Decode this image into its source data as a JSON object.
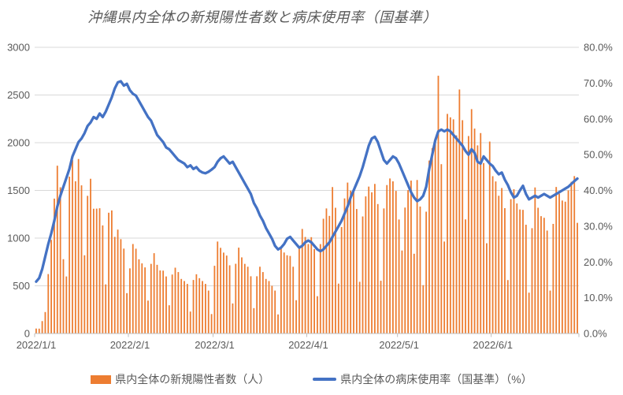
{
  "chart_data": {
    "type": "combo",
    "title": "沖縄県内全体の新規陽性者数と病床使用率（国基準）",
    "start_date": "2022/1/1",
    "x_tick_labels": [
      "2022/1/1",
      "2022/2/1",
      "2022/3/1",
      "2022/4/1",
      "2022/5/1",
      "2022/6/1"
    ],
    "x_tick_day_index": [
      0,
      31,
      59,
      90,
      120,
      151
    ],
    "days_total": 180,
    "left_axis": {
      "min": 0,
      "max": 3000,
      "step": 500,
      "tick_labels": [
        "0",
        "500",
        "1000",
        "1500",
        "2000",
        "2500",
        "3000"
      ]
    },
    "right_axis": {
      "min": 0,
      "max": 80,
      "step": 10,
      "tick_labels": [
        "0.0%",
        "10.0%",
        "20.0%",
        "30.0%",
        "40.0%",
        "50.0%",
        "60.0%",
        "70.0%",
        "80.0%"
      ]
    },
    "grid": "horizontal",
    "legend_position": "bottom",
    "colors": {
      "bar": "#ED7D31",
      "line": "#4472C4",
      "grid": "#D9D9D9",
      "axis": "#BFBFBF",
      "text": "#595959"
    },
    "series": [
      {
        "name": "県内全体の新規陽性者数（人）",
        "type": "bar",
        "axis": "left",
        "color": "#ED7D31",
        "values": [
          52,
          51,
          130,
          225,
          623,
          981,
          1414,
          1759,
          1533,
          779,
          598,
          1644,
          1817,
          1596,
          1829,
          1553,
          820,
          1443,
          1622,
          1308,
          1309,
          1313,
          1133,
          515,
          1266,
          1290,
          1013,
          1089,
          989,
          890,
          423,
          683,
          938,
          889,
          778,
          735,
          693,
          345,
          730,
          842,
          720,
          661,
          659,
          598,
          296,
          618,
          690,
          644,
          572,
          550,
          520,
          230,
          561,
          621,
          580,
          550,
          520,
          450,
          204,
          710,
          964,
          898,
          848,
          817,
          715,
          315,
          731,
          900,
          798,
          730,
          700,
          600,
          266,
          600,
          700,
          644,
          572,
          550,
          500,
          450,
          200,
          893,
          849,
          820,
          813,
          700,
          349,
          900,
          1096,
          1012,
          938,
          1010,
          885,
          391,
          937,
          1203,
          1311,
          1233,
          1535,
          1318,
          523,
          1116,
          1416,
          1582,
          1497,
          1507,
          1305,
          542,
          1227,
          1437,
          1540,
          1480,
          1568,
          1357,
          553,
          1311,
          1556,
          1625,
          1595,
          1495,
          1195,
          870,
          1320,
          1503,
          1603,
          836,
          1609,
          1331,
          507,
          1277,
          1813,
          1944,
          2046,
          2702,
          1775,
          964,
          2302,
          2266,
          2245,
          2077,
          2558,
          2236,
          1196,
          2070,
          2352,
          2148,
          1972,
          2101,
          1787,
          946,
          2012,
          1649,
          1594,
          1444,
          1525,
          1314,
          560,
          1408,
          1512,
          1363,
          1300,
          1296,
          1140,
          428,
          1104,
          1531,
          1318,
          1230,
          1213,
          1079,
          450,
          1149,
          1536,
          1465,
          1394,
          1382,
          1500,
          1590,
          1650,
          1160
        ]
      },
      {
        "name": "県内全体の病床使用率（国基準）（%）",
        "type": "line",
        "axis": "right",
        "color": "#4472C4",
        "values": [
          14.5,
          15.5,
          18.0,
          21.5,
          25.0,
          28.0,
          31.5,
          35.5,
          38.5,
          41.0,
          43.5,
          46.0,
          49.5,
          51.5,
          53.5,
          54.5,
          56.0,
          58.0,
          59.0,
          60.5,
          60.0,
          61.5,
          60.5,
          62.0,
          64.0,
          66.0,
          68.5,
          70.2,
          70.5,
          69.3,
          69.8,
          68.0,
          67.0,
          66.5,
          65.0,
          63.5,
          62.0,
          60.5,
          59.5,
          57.5,
          55.5,
          54.5,
          53.5,
          52.0,
          51.5,
          50.5,
          49.5,
          48.5,
          48.0,
          47.5,
          46.5,
          47.0,
          46.0,
          46.5,
          45.5,
          45.0,
          44.8,
          45.2,
          45.8,
          46.5,
          48.0,
          49.0,
          49.5,
          48.5,
          47.5,
          48.0,
          46.5,
          45.0,
          43.5,
          42.0,
          40.5,
          39.0,
          36.5,
          35.0,
          33.0,
          31.5,
          29.5,
          28.0,
          26.5,
          24.5,
          23.5,
          24.0,
          25.0,
          26.5,
          27.0,
          26.0,
          25.0,
          24.0,
          24.5,
          25.5,
          26.0,
          25.5,
          24.5,
          23.5,
          23.0,
          23.5,
          24.5,
          25.5,
          27.0,
          28.5,
          30.0,
          31.5,
          33.5,
          35.5,
          38.0,
          40.0,
          42.0,
          44.0,
          46.5,
          49.5,
          52.5,
          54.5,
          55.0,
          53.5,
          51.0,
          48.5,
          47.5,
          48.5,
          49.5,
          49.0,
          47.5,
          45.5,
          43.5,
          41.5,
          39.5,
          38.0,
          37.0,
          37.5,
          38.5,
          41.0,
          46.0,
          50.0,
          54.0,
          56.5,
          57.0,
          56.5,
          57.0,
          56.5,
          55.5,
          54.5,
          53.5,
          52.5,
          51.0,
          50.0,
          51.5,
          50.5,
          48.0,
          47.5,
          49.5,
          48.5,
          47.5,
          46.8,
          45.5,
          44.5,
          45.0,
          43.0,
          41.5,
          39.5,
          38.0,
          38.5,
          40.0,
          41.3,
          39.0,
          37.5,
          38.0,
          38.5,
          38.0,
          38.5,
          39.0,
          38.5,
          38.0,
          38.5,
          39.0,
          39.5,
          40.0,
          40.5,
          41.0,
          41.8,
          42.6,
          43.3
        ]
      }
    ]
  }
}
